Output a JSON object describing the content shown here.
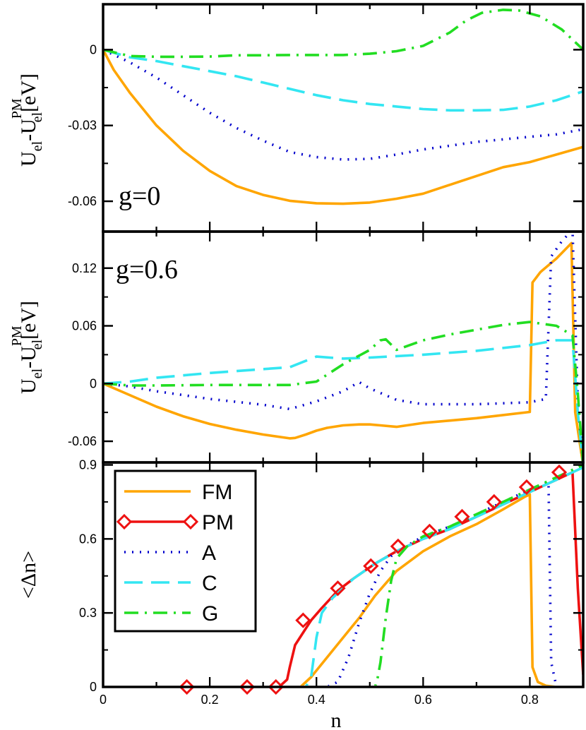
{
  "chart_data": [
    {
      "type": "line",
      "panel": "top",
      "annotation": "g=0",
      "ylabel": {
        "base": "U",
        "sub1": "el",
        "minus": "-U",
        "sub2": "el",
        "sup": "PM",
        "unit": "[eV]"
      },
      "ylim": [
        -0.072,
        0.018
      ],
      "yticks": [
        0,
        -0.03,
        -0.06
      ],
      "ytick_labels": [
        "0",
        "-0.03",
        "-0.06"
      ],
      "xlim": [
        0,
        0.9
      ],
      "series": [
        {
          "name": "FM",
          "color": "#FFA500",
          "style": "solid",
          "x": [
            0,
            0.02,
            0.05,
            0.1,
            0.15,
            0.2,
            0.25,
            0.3,
            0.35,
            0.4,
            0.45,
            0.5,
            0.55,
            0.6,
            0.65,
            0.7,
            0.75,
            0.8,
            0.85,
            0.9
          ],
          "y": [
            0,
            -0.008,
            -0.017,
            -0.03,
            -0.04,
            -0.048,
            -0.054,
            -0.0575,
            -0.0598,
            -0.0608,
            -0.061,
            -0.0605,
            -0.059,
            -0.057,
            -0.0535,
            -0.05,
            -0.0465,
            -0.0445,
            -0.0415,
            -0.0385
          ]
        },
        {
          "name": "A",
          "color": "#0000CC",
          "style": "dotted",
          "x": [
            0,
            0.05,
            0.1,
            0.15,
            0.2,
            0.25,
            0.3,
            0.35,
            0.4,
            0.45,
            0.5,
            0.55,
            0.6,
            0.65,
            0.7,
            0.75,
            0.8,
            0.85,
            0.9
          ],
          "y": [
            0,
            -0.005,
            -0.011,
            -0.018,
            -0.025,
            -0.031,
            -0.036,
            -0.0405,
            -0.0425,
            -0.0435,
            -0.0432,
            -0.0415,
            -0.0395,
            -0.038,
            -0.0365,
            -0.0355,
            -0.0345,
            -0.0335,
            -0.0315
          ]
        },
        {
          "name": "C",
          "color": "#33E6F2",
          "style": "dashed",
          "x": [
            0,
            0.05,
            0.1,
            0.15,
            0.2,
            0.25,
            0.3,
            0.35,
            0.4,
            0.45,
            0.5,
            0.55,
            0.6,
            0.65,
            0.7,
            0.75,
            0.8,
            0.85,
            0.9
          ],
          "y": [
            0,
            -0.003,
            -0.0045,
            -0.0065,
            -0.0085,
            -0.0105,
            -0.013,
            -0.0155,
            -0.018,
            -0.02,
            -0.0215,
            -0.0225,
            -0.0235,
            -0.024,
            -0.024,
            -0.0238,
            -0.0225,
            -0.02,
            -0.0165
          ]
        },
        {
          "name": "G",
          "color": "#22DD22",
          "style": "dashdot",
          "x": [
            0,
            0.05,
            0.1,
            0.15,
            0.2,
            0.25,
            0.3,
            0.35,
            0.4,
            0.45,
            0.5,
            0.55,
            0.6,
            0.65,
            0.68,
            0.71,
            0.75,
            0.78,
            0.82,
            0.86,
            0.9
          ],
          "y": [
            0,
            -0.0025,
            -0.0028,
            -0.0028,
            -0.0027,
            -0.0022,
            -0.0022,
            -0.0021,
            -0.0021,
            -0.0021,
            -0.0016,
            -0.0006,
            0.0015,
            0.0068,
            0.0115,
            0.0146,
            0.0158,
            0.0155,
            0.0132,
            0.008,
            0.0
          ]
        }
      ]
    },
    {
      "type": "line",
      "panel": "middle",
      "annotation": "g=0.6",
      "ylabel": {
        "base": "U",
        "sub1": "el",
        "minus": "-U",
        "sub2": "el",
        "sup": "PM",
        "unit": "[eV]"
      },
      "ylim": [
        -0.082,
        0.158
      ],
      "yticks": [
        0.12,
        0.06,
        0,
        -0.06
      ],
      "ytick_labels": [
        "0.12",
        "0.06",
        "0",
        "-0.06"
      ],
      "xlim": [
        0,
        0.9
      ],
      "series": [
        {
          "name": "FM",
          "color": "#FFA500",
          "style": "solid",
          "x": [
            0,
            0.05,
            0.1,
            0.15,
            0.2,
            0.25,
            0.3,
            0.35,
            0.36,
            0.38,
            0.4,
            0.42,
            0.45,
            0.48,
            0.5,
            0.52,
            0.55,
            0.6,
            0.7,
            0.8,
            0.805,
            0.82,
            0.85,
            0.878,
            0.885,
            0.9
          ],
          "y": [
            0,
            -0.012,
            -0.024,
            -0.034,
            -0.042,
            -0.048,
            -0.053,
            -0.057,
            -0.0565,
            -0.053,
            -0.049,
            -0.046,
            -0.0435,
            -0.0425,
            -0.0425,
            -0.0435,
            -0.045,
            -0.041,
            -0.036,
            -0.0295,
            0.105,
            0.116,
            0.13,
            0.146,
            -0.03,
            -0.085
          ]
        },
        {
          "name": "A",
          "color": "#0000CC",
          "style": "dotted",
          "x": [
            0,
            0.05,
            0.1,
            0.15,
            0.2,
            0.25,
            0.3,
            0.35,
            0.4,
            0.45,
            0.48,
            0.5,
            0.55,
            0.6,
            0.7,
            0.8,
            0.83,
            0.84,
            0.86,
            0.88,
            0.89,
            0.9
          ],
          "y": [
            0,
            -0.003,
            -0.008,
            -0.012,
            -0.016,
            -0.019,
            -0.022,
            -0.0265,
            -0.0185,
            -0.008,
            0.0015,
            -0.005,
            -0.017,
            -0.0215,
            -0.0215,
            -0.0195,
            -0.016,
            0.132,
            0.148,
            0.16,
            -0.02,
            -0.085
          ]
        },
        {
          "name": "C",
          "color": "#33E6F2",
          "style": "dashed",
          "x": [
            0,
            0.05,
            0.1,
            0.2,
            0.3,
            0.35,
            0.4,
            0.45,
            0.5,
            0.6,
            0.7,
            0.8,
            0.85,
            0.88,
            0.89,
            0.9
          ],
          "y": [
            0,
            0.002,
            0.006,
            0.011,
            0.015,
            0.017,
            0.028,
            0.026,
            0.027,
            0.03,
            0.034,
            0.04,
            0.045,
            0.045,
            -0.03,
            -0.085
          ]
        },
        {
          "name": "G",
          "color": "#22DD22",
          "style": "dashdot",
          "x": [
            0,
            0.05,
            0.1,
            0.2,
            0.3,
            0.35,
            0.4,
            0.45,
            0.5,
            0.52,
            0.53,
            0.55,
            0.6,
            0.65,
            0.7,
            0.75,
            0.8,
            0.85,
            0.88,
            0.89,
            0.9
          ],
          "y": [
            0,
            -0.002,
            -0.002,
            -0.0015,
            -0.0015,
            -0.0015,
            0.002,
            0.02,
            0.035,
            0.045,
            0.046,
            0.035,
            0.045,
            0.051,
            0.056,
            0.061,
            0.064,
            0.06,
            0.05,
            -0.01,
            -0.085
          ]
        }
      ]
    },
    {
      "type": "line",
      "panel": "bottom",
      "ylabel": "<Δn>",
      "xlabel": "n",
      "ylim": [
        0,
        0.91
      ],
      "yticks": [
        0,
        0.3,
        0.6,
        0.9
      ],
      "ytick_labels": [
        "0",
        "0.3",
        "0.6",
        "0.9"
      ],
      "xlim": [
        0,
        0.9
      ],
      "xticks": [
        0,
        0.2,
        0.4,
        0.6,
        0.8
      ],
      "xtick_labels": [
        "0",
        "0.2",
        "0.4",
        "0.6",
        "0.8"
      ],
      "legend": {
        "placement": "upper-left",
        "entries": [
          "FM",
          "PM",
          "A",
          "C",
          "G"
        ]
      },
      "series": [
        {
          "name": "FM",
          "color": "#FFA500",
          "style": "solid",
          "x": [
            0,
            0.37,
            0.39,
            0.42,
            0.45,
            0.48,
            0.51,
            0.55,
            0.6,
            0.65,
            0.7,
            0.75,
            0.79,
            0.8,
            0.805,
            0.815,
            0.83,
            0.85
          ],
          "y": [
            0,
            0,
            0.04,
            0.12,
            0.2,
            0.28,
            0.37,
            0.47,
            0.55,
            0.61,
            0.66,
            0.72,
            0.77,
            0.78,
            0.08,
            0.02,
            0.005,
            0
          ]
        },
        {
          "name": "PM",
          "color": "#EE1111",
          "style": "solid",
          "marker": "diamond",
          "x": [
            0,
            0.33,
            0.345,
            0.35,
            0.36,
            0.375,
            0.39,
            0.41,
            0.44,
            0.47,
            0.51,
            0.55,
            0.6,
            0.65,
            0.7,
            0.75,
            0.8,
            0.85,
            0.88,
            0.89,
            0.9
          ],
          "y": [
            0,
            0,
            0.03,
            0.08,
            0.17,
            0.22,
            0.27,
            0.32,
            0.39,
            0.44,
            0.5,
            0.55,
            0.6,
            0.64,
            0.69,
            0.74,
            0.79,
            0.84,
            0.87,
            0.4,
            0.05
          ],
          "markers_x": [
            0.157,
            0.27,
            0.324,
            0.375,
            0.44,
            0.502,
            0.553,
            0.612,
            0.673,
            0.733,
            0.794,
            0.855
          ],
          "markers_y": [
            0,
            0,
            0,
            0.27,
            0.4,
            0.49,
            0.57,
            0.63,
            0.69,
            0.75,
            0.81,
            0.87
          ]
        },
        {
          "name": "A",
          "color": "#0000CC",
          "style": "dotted",
          "x": [
            0,
            0.42,
            0.44,
            0.46,
            0.48,
            0.5,
            0.52,
            0.54,
            0.56,
            0.6,
            0.65,
            0.7,
            0.75,
            0.8,
            0.835,
            0.84,
            0.85
          ],
          "y": [
            0,
            0,
            0.02,
            0.12,
            0.26,
            0.38,
            0.47,
            0.53,
            0.56,
            0.61,
            0.65,
            0.7,
            0.75,
            0.8,
            0.83,
            0.1,
            0
          ]
        },
        {
          "name": "C",
          "color": "#33E6F2",
          "style": "dashed",
          "x": [
            0,
            0.38,
            0.39,
            0.4,
            0.41,
            0.43,
            0.47,
            0.51,
            0.55,
            0.6,
            0.65,
            0.7,
            0.75,
            0.8,
            0.85,
            0.88,
            0.9
          ],
          "y": [
            0,
            0,
            0.04,
            0.2,
            0.3,
            0.36,
            0.44,
            0.5,
            0.55,
            0.6,
            0.64,
            0.69,
            0.74,
            0.79,
            0.84,
            0.87,
            0.89
          ]
        },
        {
          "name": "G",
          "color": "#22DD22",
          "style": "dashdot",
          "x": [
            0,
            0.51,
            0.515,
            0.52,
            0.53,
            0.54,
            0.55,
            0.57,
            0.6,
            0.65,
            0.7,
            0.75,
            0.8,
            0.85,
            0.88,
            0.9
          ],
          "y": [
            0,
            0,
            0.04,
            0.1,
            0.28,
            0.43,
            0.52,
            0.57,
            0.61,
            0.65,
            0.7,
            0.75,
            0.8,
            0.85,
            0.88,
            0.9
          ]
        }
      ]
    }
  ]
}
